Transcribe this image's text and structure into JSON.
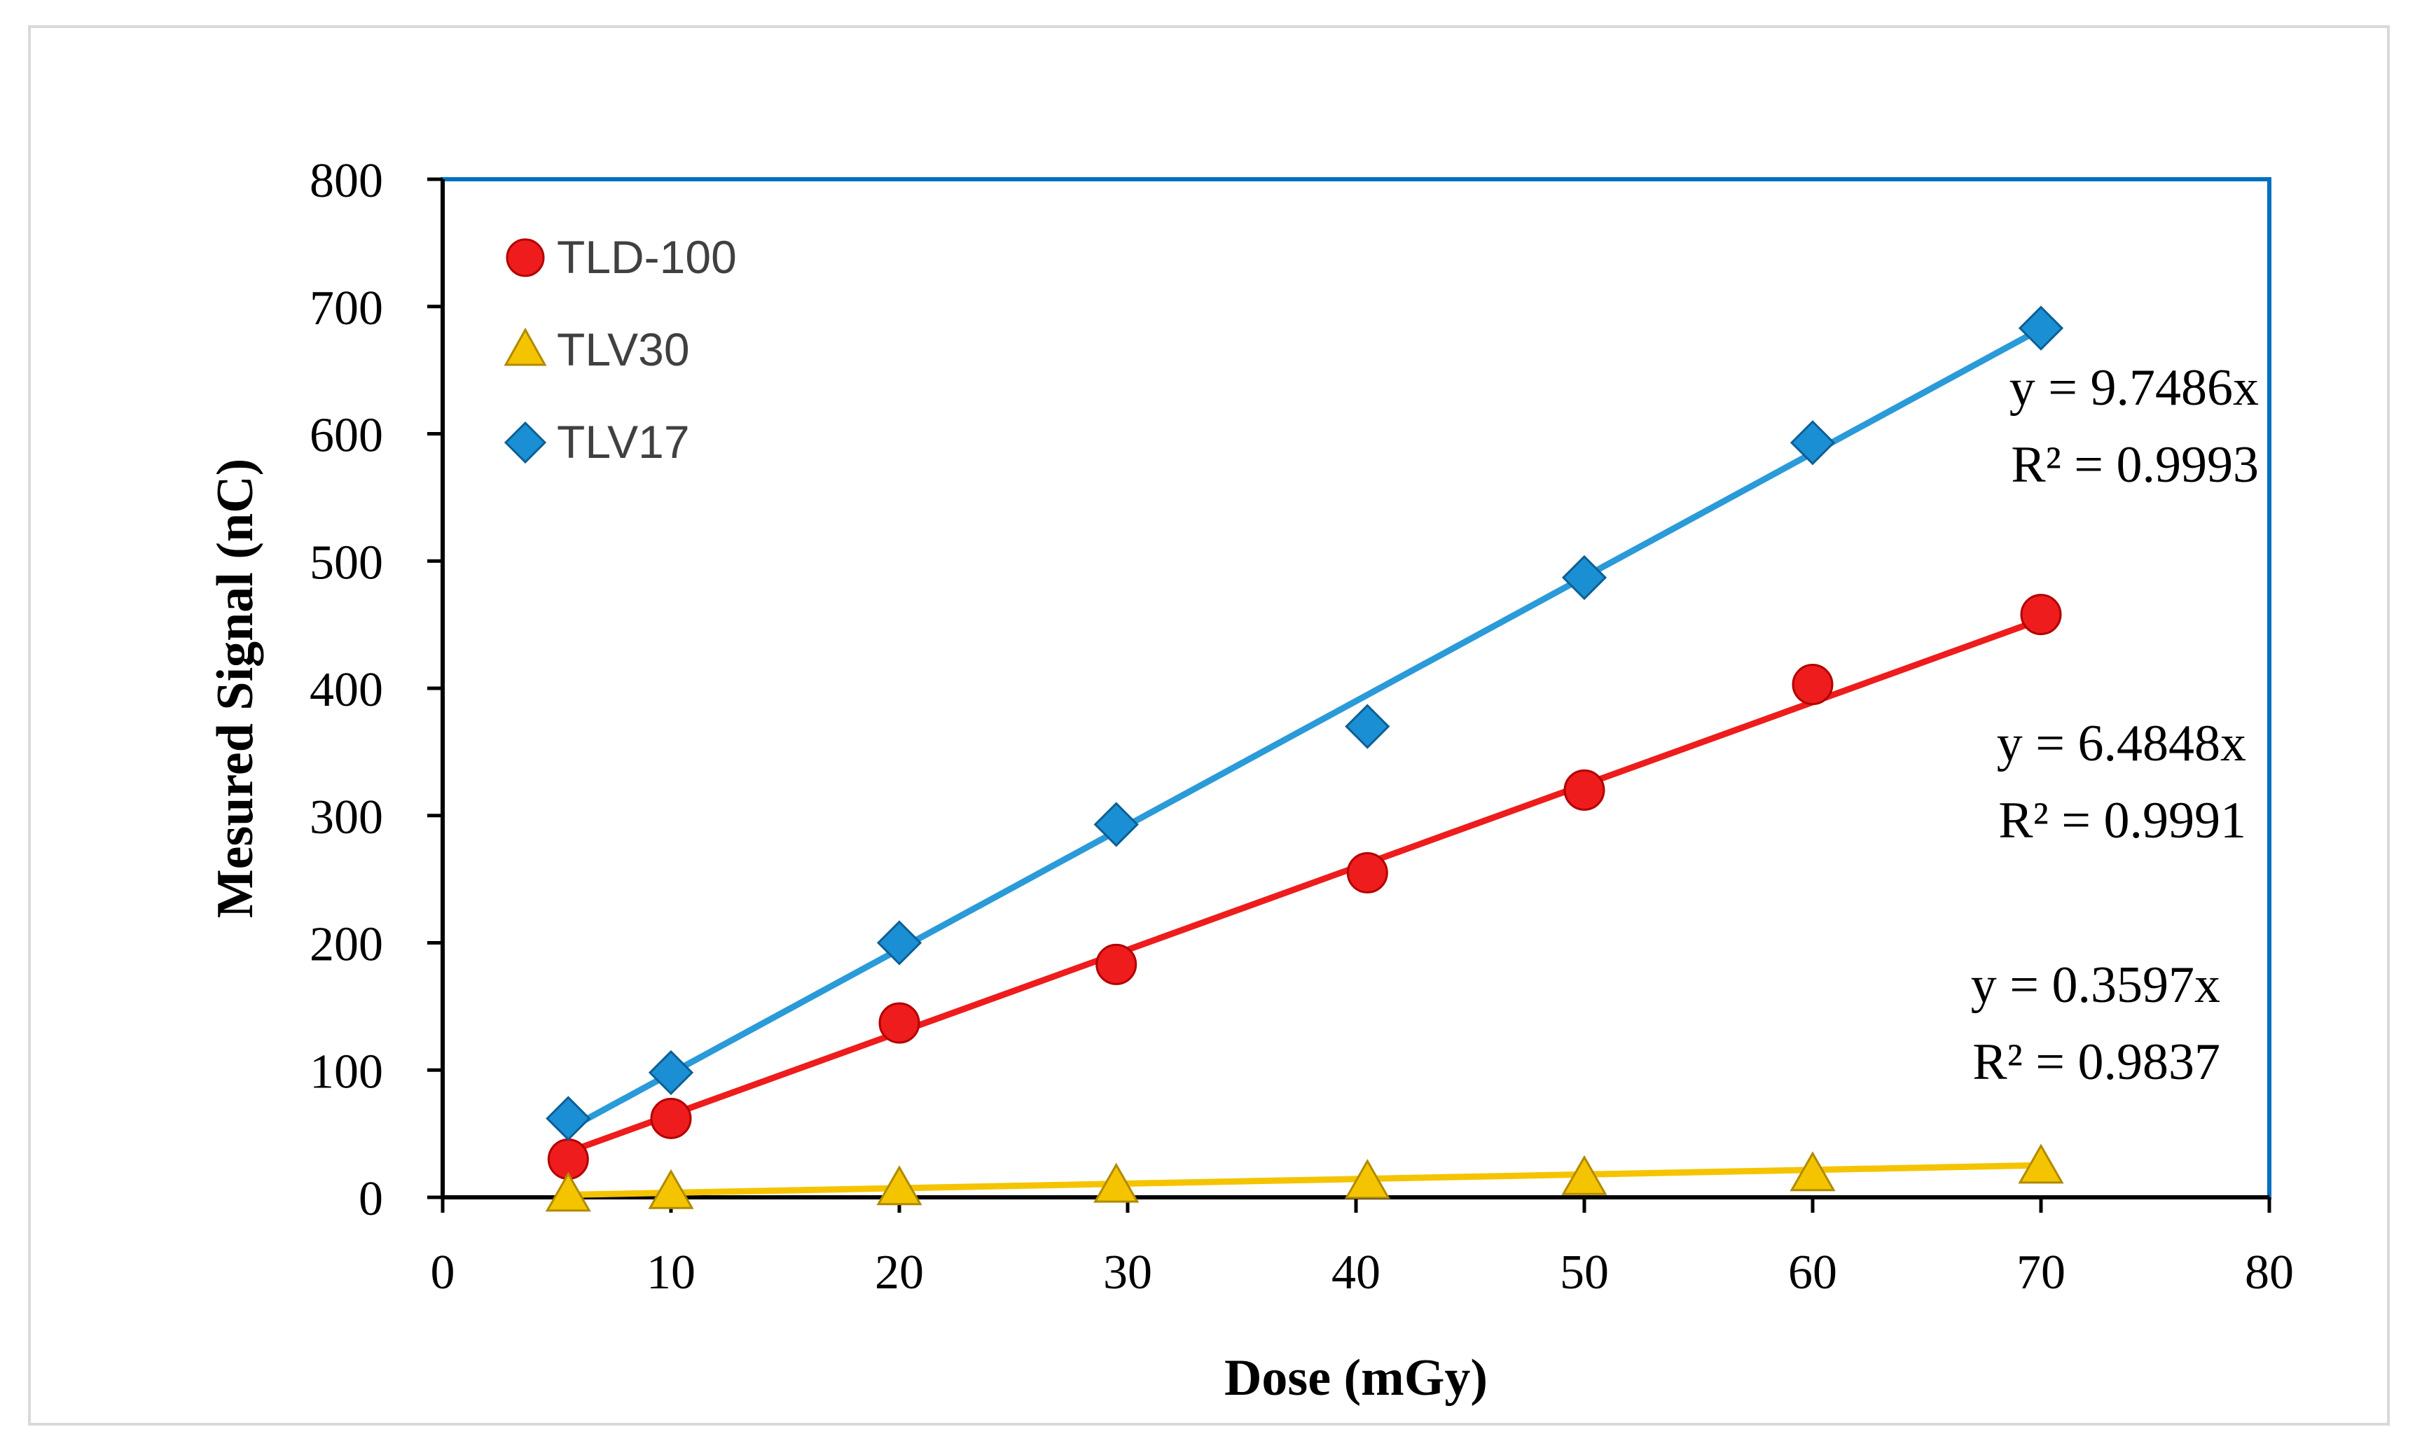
{
  "chart_data": {
    "type": "scatter",
    "title": "",
    "xlabel": "Dose (mGy)",
    "ylabel": "Mesured Signal (nC)",
    "xlim": [
      0,
      80
    ],
    "ylim": [
      0,
      800
    ],
    "xticks": [
      0,
      10,
      20,
      30,
      40,
      50,
      60,
      70,
      80
    ],
    "yticks": [
      0,
      100,
      200,
      300,
      400,
      500,
      600,
      700,
      800
    ],
    "xtick_labels": [
      "0",
      "10",
      "20",
      "30",
      "40",
      "50",
      "60",
      "70",
      "80"
    ],
    "ytick_labels": [
      "0",
      "100",
      "200",
      "300",
      "400",
      "500",
      "600",
      "700",
      "800"
    ],
    "grid": false,
    "legend_position": "top-left",
    "series": [
      {
        "name": "TLD-100",
        "marker": "circle",
        "color": "#ee1c1c",
        "line_color": "#ee1c1c",
        "x": [
          5.5,
          10,
          20,
          29.5,
          40.5,
          50,
          60,
          70
        ],
        "y": [
          30,
          62,
          137,
          183,
          255,
          320,
          403,
          458
        ],
        "trend_slope": 6.4848,
        "equation": "y = 6.4848x",
        "r2": "R² = 0.9991"
      },
      {
        "name": "TLV30",
        "marker": "triangle",
        "color": "#f5c400",
        "line_color": "#f5c400",
        "x": [
          5.5,
          10,
          20,
          29.5,
          40.5,
          50,
          60,
          70
        ],
        "y": [
          2,
          4,
          7,
          9,
          12,
          15,
          18,
          24
        ],
        "trend_slope": 0.3597,
        "equation": "y = 0.3597x",
        "r2": "R² = 0.9837"
      },
      {
        "name": "TLV17",
        "marker": "diamond",
        "color": "#1b8fd4",
        "line_color": "#2a9ad9",
        "x": [
          5.5,
          10,
          20,
          29.5,
          40.5,
          50,
          60,
          70
        ],
        "y": [
          62,
          98,
          200,
          293,
          370,
          487,
          593,
          683
        ],
        "trend_slope": 9.7486,
        "equation": "y = 9.7486x",
        "r2": "R² = 0.9993"
      }
    ]
  },
  "colors": {
    "plot_border": "#0070c0",
    "axis": "#000000",
    "frame": "#d9d9d9"
  }
}
